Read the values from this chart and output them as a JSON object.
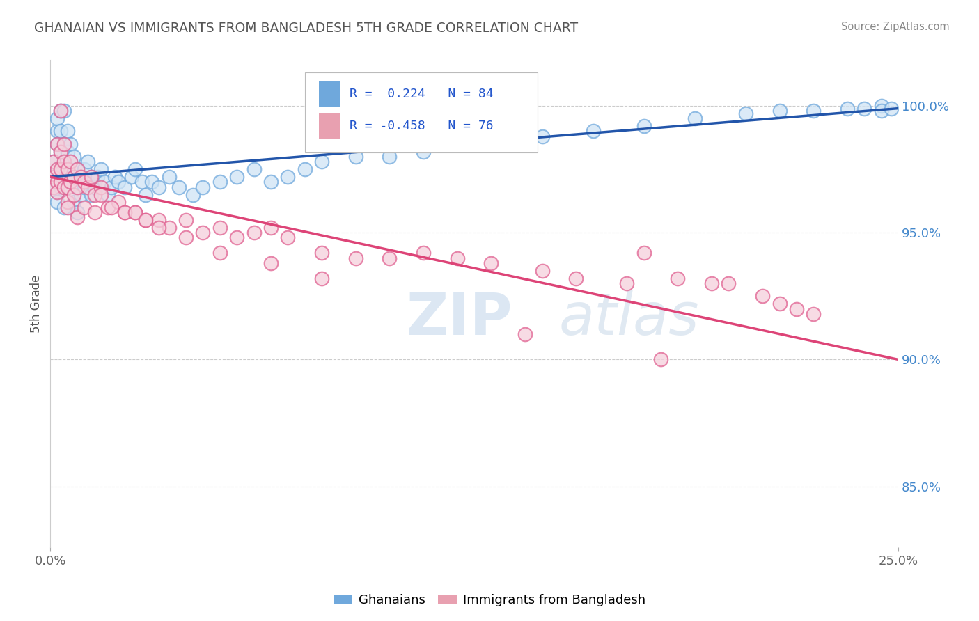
{
  "title": "GHANAIAN VS IMMIGRANTS FROM BANGLADESH 5TH GRADE CORRELATION CHART",
  "source": "Source: ZipAtlas.com",
  "ylabel": "5th Grade",
  "y_tick_labels": [
    "85.0%",
    "90.0%",
    "95.0%",
    "100.0%"
  ],
  "y_tick_values": [
    0.85,
    0.9,
    0.95,
    1.0
  ],
  "xlim": [
    0.0,
    0.25
  ],
  "ylim": [
    0.826,
    1.018
  ],
  "blue_R": 0.224,
  "blue_N": 84,
  "pink_R": -0.458,
  "pink_N": 76,
  "blue_color": "#6fa8dc",
  "pink_color": "#e06090",
  "blue_line_color": "#2255aa",
  "pink_line_color": "#dd4477",
  "legend_blue": "Ghanaians",
  "legend_pink": "Immigrants from Bangladesh",
  "blue_x": [
    0.001,
    0.001,
    0.001,
    0.002,
    0.002,
    0.002,
    0.002,
    0.002,
    0.002,
    0.002,
    0.003,
    0.003,
    0.003,
    0.003,
    0.003,
    0.003,
    0.004,
    0.004,
    0.004,
    0.004,
    0.004,
    0.005,
    0.005,
    0.005,
    0.005,
    0.006,
    0.006,
    0.006,
    0.007,
    0.007,
    0.007,
    0.008,
    0.008,
    0.008,
    0.009,
    0.009,
    0.01,
    0.01,
    0.011,
    0.011,
    0.012,
    0.012,
    0.013,
    0.014,
    0.015,
    0.016,
    0.017,
    0.018,
    0.019,
    0.02,
    0.022,
    0.024,
    0.025,
    0.027,
    0.028,
    0.03,
    0.032,
    0.035,
    0.038,
    0.042,
    0.045,
    0.05,
    0.055,
    0.06,
    0.065,
    0.07,
    0.075,
    0.08,
    0.09,
    0.1,
    0.11,
    0.13,
    0.145,
    0.16,
    0.175,
    0.19,
    0.205,
    0.215,
    0.225,
    0.235,
    0.24,
    0.245,
    0.245,
    0.248
  ],
  "blue_y": [
    0.978,
    0.972,
    0.968,
    0.975,
    0.97,
    0.966,
    0.962,
    0.985,
    0.99,
    0.995,
    0.975,
    0.97,
    0.968,
    0.982,
    0.99,
    0.998,
    0.972,
    0.978,
    0.985,
    0.96,
    0.998,
    0.968,
    0.975,
    0.982,
    0.99,
    0.97,
    0.978,
    0.985,
    0.972,
    0.98,
    0.962,
    0.975,
    0.968,
    0.958,
    0.972,
    0.965,
    0.975,
    0.968,
    0.97,
    0.978,
    0.972,
    0.965,
    0.968,
    0.972,
    0.975,
    0.97,
    0.965,
    0.968,
    0.972,
    0.97,
    0.968,
    0.972,
    0.975,
    0.97,
    0.965,
    0.97,
    0.968,
    0.972,
    0.968,
    0.965,
    0.968,
    0.97,
    0.972,
    0.975,
    0.97,
    0.972,
    0.975,
    0.978,
    0.98,
    0.98,
    0.982,
    0.985,
    0.988,
    0.99,
    0.992,
    0.995,
    0.997,
    0.998,
    0.998,
    0.999,
    0.999,
    1.0,
    0.998,
    0.999
  ],
  "pink_x": [
    0.001,
    0.001,
    0.001,
    0.002,
    0.002,
    0.002,
    0.002,
    0.003,
    0.003,
    0.003,
    0.003,
    0.004,
    0.004,
    0.004,
    0.005,
    0.005,
    0.005,
    0.006,
    0.006,
    0.007,
    0.007,
    0.008,
    0.008,
    0.009,
    0.01,
    0.011,
    0.012,
    0.013,
    0.015,
    0.017,
    0.02,
    0.022,
    0.025,
    0.028,
    0.032,
    0.035,
    0.04,
    0.045,
    0.05,
    0.055,
    0.06,
    0.065,
    0.07,
    0.08,
    0.09,
    0.1,
    0.11,
    0.12,
    0.13,
    0.145,
    0.155,
    0.17,
    0.175,
    0.185,
    0.195,
    0.2,
    0.21,
    0.215,
    0.22,
    0.225,
    0.005,
    0.008,
    0.01,
    0.013,
    0.015,
    0.018,
    0.022,
    0.025,
    0.028,
    0.032,
    0.04,
    0.05,
    0.065,
    0.08,
    0.14,
    0.18
  ],
  "pink_y": [
    0.978,
    0.972,
    0.968,
    0.975,
    0.97,
    0.966,
    0.985,
    0.982,
    0.975,
    0.97,
    0.998,
    0.985,
    0.978,
    0.968,
    0.975,
    0.968,
    0.962,
    0.97,
    0.978,
    0.972,
    0.965,
    0.975,
    0.968,
    0.972,
    0.97,
    0.968,
    0.972,
    0.965,
    0.968,
    0.96,
    0.962,
    0.958,
    0.958,
    0.955,
    0.955,
    0.952,
    0.955,
    0.95,
    0.952,
    0.948,
    0.95,
    0.952,
    0.948,
    0.942,
    0.94,
    0.94,
    0.942,
    0.94,
    0.938,
    0.935,
    0.932,
    0.93,
    0.942,
    0.932,
    0.93,
    0.93,
    0.925,
    0.922,
    0.92,
    0.918,
    0.96,
    0.956,
    0.96,
    0.958,
    0.965,
    0.96,
    0.958,
    0.958,
    0.955,
    0.952,
    0.948,
    0.942,
    0.938,
    0.932,
    0.91,
    0.9
  ]
}
